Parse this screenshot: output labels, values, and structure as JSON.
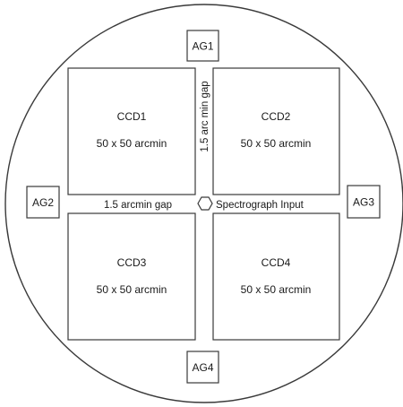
{
  "ccds": [
    {
      "name": "CCD1",
      "size": "50 x 50 arcmin"
    },
    {
      "name": "CCD2",
      "size": "50 x 50 arcmin"
    },
    {
      "name": "CCD3",
      "size": "50 x 50 arcmin"
    },
    {
      "name": "CCD4",
      "size": "50 x 50 arcmin"
    }
  ],
  "guiders": [
    "AG1",
    "AG2",
    "AG3",
    "AG4"
  ],
  "gaps": {
    "vertical_label": "1.5 arc min gap",
    "horizontal_label": "1.5 arcmin gap"
  },
  "spectrograph": {
    "label": "Spectrograph Input"
  },
  "colors": {
    "stroke": "#3a3a3a",
    "text": "#1a1a1a",
    "background": "#ffffff"
  }
}
